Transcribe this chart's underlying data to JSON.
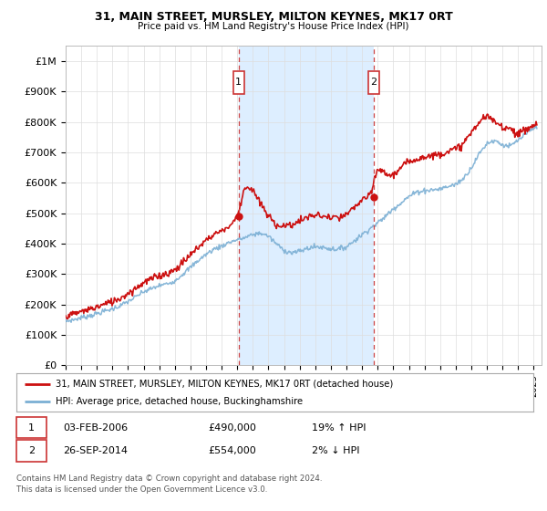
{
  "title": "31, MAIN STREET, MURSLEY, MILTON KEYNES, MK17 0RT",
  "subtitle": "Price paid vs. HM Land Registry's House Price Index (HPI)",
  "ylim": [
    0,
    1050000
  ],
  "yticks": [
    0,
    100000,
    200000,
    300000,
    400000,
    500000,
    600000,
    700000,
    800000,
    900000,
    1000000
  ],
  "ytick_labels": [
    "£0",
    "£100K",
    "£200K",
    "£300K",
    "£400K",
    "£500K",
    "£600K",
    "£700K",
    "£800K",
    "£900K",
    "£1M"
  ],
  "hpi_color": "#7bafd4",
  "sale_color": "#cc1111",
  "marker1_year": 2006.08,
  "marker1_price": 490000,
  "marker1_label": "1",
  "marker2_year": 2014.75,
  "marker2_price": 554000,
  "marker2_label": "2",
  "shade_color": "#ddeeff",
  "legend_sale_label": "31, MAIN STREET, MURSLEY, MILTON KEYNES, MK17 0RT (detached house)",
  "legend_hpi_label": "HPI: Average price, detached house, Buckinghamshire",
  "table_row1": [
    "1",
    "03-FEB-2006",
    "£490,000",
    "19% ↑ HPI"
  ],
  "table_row2": [
    "2",
    "26-SEP-2014",
    "£554,000",
    "2% ↓ HPI"
  ],
  "footer": "Contains HM Land Registry data © Crown copyright and database right 2024.\nThis data is licensed under the Open Government Licence v3.0.",
  "grid_color": "#dddddd",
  "hpi_years": [
    1995.0,
    1995.5,
    1996.0,
    1996.5,
    1997.0,
    1997.5,
    1998.0,
    1998.5,
    1999.0,
    1999.5,
    2000.0,
    2000.5,
    2001.0,
    2001.5,
    2002.0,
    2002.5,
    2003.0,
    2003.5,
    2004.0,
    2004.5,
    2005.0,
    2005.5,
    2006.0,
    2006.5,
    2007.0,
    2007.5,
    2008.0,
    2008.5,
    2009.0,
    2009.5,
    2010.0,
    2010.5,
    2011.0,
    2011.5,
    2012.0,
    2012.5,
    2013.0,
    2013.5,
    2014.0,
    2014.5,
    2015.0,
    2015.5,
    2016.0,
    2016.5,
    2017.0,
    2017.5,
    2018.0,
    2018.5,
    2019.0,
    2019.5,
    2020.0,
    2020.5,
    2021.0,
    2021.5,
    2022.0,
    2022.5,
    2023.0,
    2023.5,
    2024.0,
    2024.5,
    2025.0
  ],
  "hpi_vals": [
    145000,
    150000,
    157000,
    163000,
    170000,
    178000,
    186000,
    196000,
    210000,
    225000,
    242000,
    252000,
    262000,
    268000,
    278000,
    300000,
    322000,
    345000,
    365000,
    382000,
    392000,
    405000,
    413000,
    420000,
    430000,
    435000,
    425000,
    400000,
    378000,
    370000,
    375000,
    385000,
    390000,
    388000,
    383000,
    382000,
    390000,
    410000,
    430000,
    450000,
    468000,
    490000,
    515000,
    535000,
    555000,
    570000,
    575000,
    577000,
    580000,
    588000,
    595000,
    615000,
    650000,
    695000,
    730000,
    740000,
    725000,
    720000,
    740000,
    760000,
    780000
  ],
  "sale_years": [
    1995.0,
    1995.5,
    1996.0,
    1996.5,
    1997.0,
    1997.5,
    1998.0,
    1998.5,
    1999.0,
    1999.5,
    2000.0,
    2000.5,
    2001.0,
    2001.5,
    2002.0,
    2002.5,
    2003.0,
    2003.5,
    2004.0,
    2004.5,
    2005.0,
    2005.5,
    2006.0,
    2006.5,
    2007.0,
    2007.5,
    2008.0,
    2008.5,
    2009.0,
    2009.5,
    2010.0,
    2010.5,
    2011.0,
    2011.5,
    2012.0,
    2012.5,
    2013.0,
    2013.5,
    2014.0,
    2014.5,
    2015.0,
    2015.5,
    2016.0,
    2016.5,
    2017.0,
    2017.5,
    2018.0,
    2018.5,
    2019.0,
    2019.5,
    2020.0,
    2020.5,
    2021.0,
    2021.5,
    2022.0,
    2022.5,
    2023.0,
    2023.5,
    2024.0,
    2024.5,
    2025.0
  ],
  "sale_vals": [
    163000,
    168000,
    177000,
    184000,
    192000,
    201000,
    210000,
    221000,
    237000,
    254000,
    273000,
    284000,
    295000,
    302000,
    314000,
    338000,
    363000,
    389000,
    412000,
    431000,
    443000,
    457000,
    490000,
    590000,
    575000,
    530000,
    490000,
    462000,
    458000,
    462000,
    475000,
    487000,
    494000,
    490000,
    485000,
    484000,
    494000,
    519000,
    545000,
    554000,
    647000,
    630000,
    625000,
    650000,
    670000,
    680000,
    685000,
    690000,
    695000,
    705000,
    710000,
    730000,
    765000,
    800000,
    820000,
    800000,
    785000,
    780000,
    760000,
    775000,
    790000
  ]
}
